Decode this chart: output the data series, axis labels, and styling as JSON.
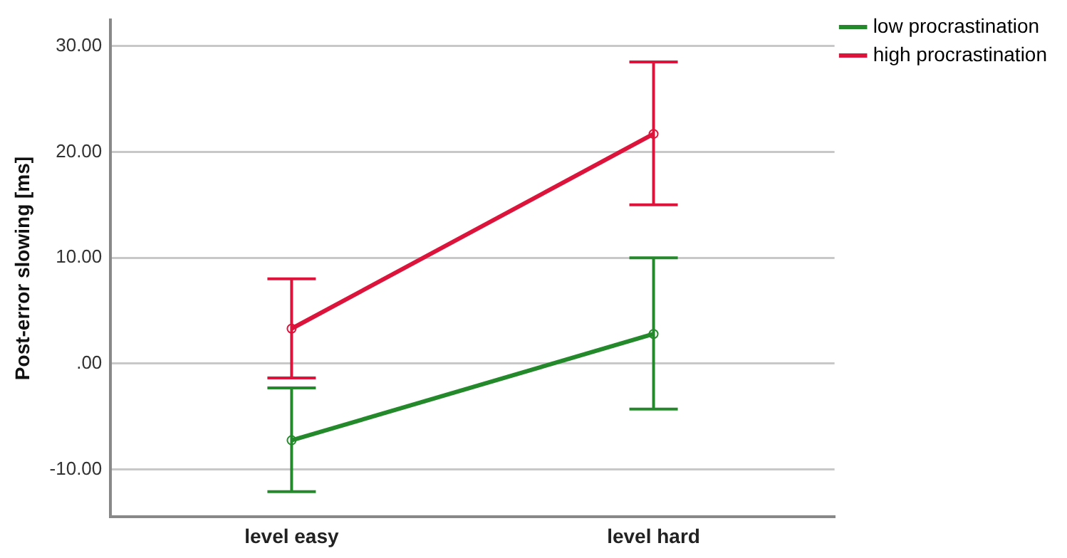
{
  "chart_data": {
    "type": "line",
    "ylabel": "Post-error slowing [ms]",
    "categories": [
      "level easy",
      "level hard"
    ],
    "series": [
      {
        "name": "low procrastination",
        "color": "#24892a",
        "values": [
          -7.25,
          2.8
        ],
        "errors": [
          [
            -12.1,
            -2.3
          ],
          [
            -4.3,
            10.0
          ]
        ]
      },
      {
        "name": "high procrastination",
        "color": "#dc143c",
        "values": [
          3.3,
          21.7
        ],
        "errors": [
          [
            -1.35,
            8.0
          ],
          [
            15.0,
            28.5
          ]
        ]
      }
    ],
    "ylim": [
      -14.5,
      32.5
    ],
    "yticks": [
      {
        "value": -10,
        "label": "-10.00"
      },
      {
        "value": 0,
        "label": ".00"
      },
      {
        "value": 10,
        "label": "10.00"
      },
      {
        "value": 20,
        "label": "20.00"
      },
      {
        "value": 30,
        "label": "30.00"
      }
    ],
    "grid": "y",
    "legend": "top right",
    "marker": "circle"
  }
}
